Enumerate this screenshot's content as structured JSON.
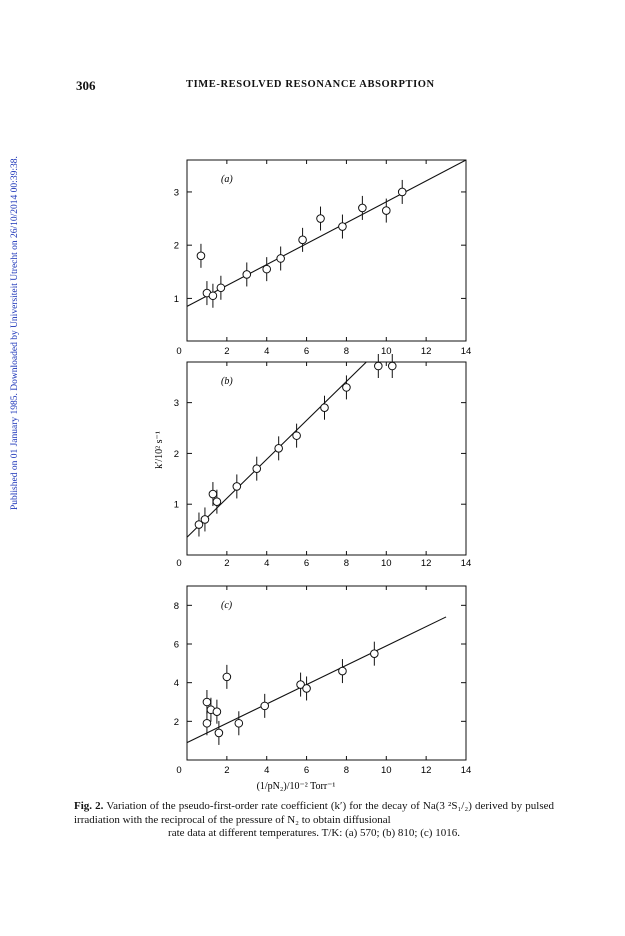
{
  "page": {
    "number": "306",
    "running_head": "TIME-RESOLVED RESONANCE ABSORPTION",
    "side_note": "Published on 01 January 1985. Downloaded by Universiteit Utrecht on 26/10/2014 00:39:38."
  },
  "figure": {
    "ylabel": "k′/10² s⁻¹",
    "xlabel": "(1/pN₂)/10⁻² Torr⁻¹",
    "x_ticks": [
      "0",
      "2",
      "4",
      "6",
      "8",
      "10",
      "12",
      "14"
    ]
  },
  "chart_data": [
    {
      "type": "scatter",
      "panel_label": "(a)",
      "xlim": [
        0,
        14
      ],
      "ylim": [
        0.2,
        3.6
      ],
      "y_ticks": [
        "1",
        "2",
        "3"
      ],
      "points": [
        {
          "x": 0.7,
          "y": 1.8
        },
        {
          "x": 1.0,
          "y": 1.1
        },
        {
          "x": 1.3,
          "y": 1.05
        },
        {
          "x": 1.7,
          "y": 1.2
        },
        {
          "x": 3.0,
          "y": 1.45
        },
        {
          "x": 4.0,
          "y": 1.55
        },
        {
          "x": 4.7,
          "y": 1.75
        },
        {
          "x": 5.8,
          "y": 2.1
        },
        {
          "x": 6.7,
          "y": 2.5
        },
        {
          "x": 7.8,
          "y": 2.35
        },
        {
          "x": 8.8,
          "y": 2.7
        },
        {
          "x": 10.0,
          "y": 2.65
        },
        {
          "x": 10.8,
          "y": 3.0
        }
      ],
      "fit": {
        "x1": 0,
        "y1": 0.85,
        "x2": 14,
        "y2": 3.6
      }
    },
    {
      "type": "scatter",
      "panel_label": "(b)",
      "xlim": [
        0,
        14
      ],
      "ylim": [
        0,
        3.8
      ],
      "y_ticks": [
        "1",
        "2",
        "3"
      ],
      "points": [
        {
          "x": 0.6,
          "y": 0.6
        },
        {
          "x": 0.9,
          "y": 0.7
        },
        {
          "x": 1.3,
          "y": 1.2
        },
        {
          "x": 1.5,
          "y": 1.05
        },
        {
          "x": 2.5,
          "y": 1.35
        },
        {
          "x": 3.5,
          "y": 1.7
        },
        {
          "x": 4.6,
          "y": 2.1
        },
        {
          "x": 5.5,
          "y": 2.35
        },
        {
          "x": 6.9,
          "y": 2.9
        },
        {
          "x": 8.0,
          "y": 3.3
        },
        {
          "x": 9.6,
          "y": 3.75
        },
        {
          "x": 10.3,
          "y": 3.75
        }
      ],
      "fit": {
        "x1": 0,
        "y1": 0.35,
        "x2": 9.0,
        "y2": 3.8
      }
    },
    {
      "type": "scatter",
      "panel_label": "(c)",
      "xlim": [
        0,
        14
      ],
      "ylim": [
        0,
        9
      ],
      "y_ticks": [
        "2",
        "4",
        "6",
        "8"
      ],
      "points": [
        {
          "x": 1.0,
          "y": 3.0
        },
        {
          "x": 1.2,
          "y": 2.6
        },
        {
          "x": 1.5,
          "y": 2.5
        },
        {
          "x": 1.0,
          "y": 1.9
        },
        {
          "x": 1.6,
          "y": 1.4
        },
        {
          "x": 2.0,
          "y": 4.3
        },
        {
          "x": 2.6,
          "y": 1.9
        },
        {
          "x": 3.9,
          "y": 2.8
        },
        {
          "x": 5.7,
          "y": 3.9
        },
        {
          "x": 6.0,
          "y": 3.7
        },
        {
          "x": 7.8,
          "y": 4.6
        },
        {
          "x": 9.4,
          "y": 5.5
        }
      ],
      "fit": {
        "x1": 0,
        "y1": 0.9,
        "x2": 13.0,
        "y2": 7.4
      }
    }
  ],
  "caption": {
    "label": "Fig. 2.",
    "text": "Variation of the pseudo-first-order rate coefficient (k′) for the decay of Na(3 ²S₁/₂) derived by pulsed irradiation with the reciprocal of the pressure of N₂ to obtain diffusional",
    "text_last": "rate data at different temperatures. T/K: (a) 570; (b) 810; (c) 1016."
  }
}
